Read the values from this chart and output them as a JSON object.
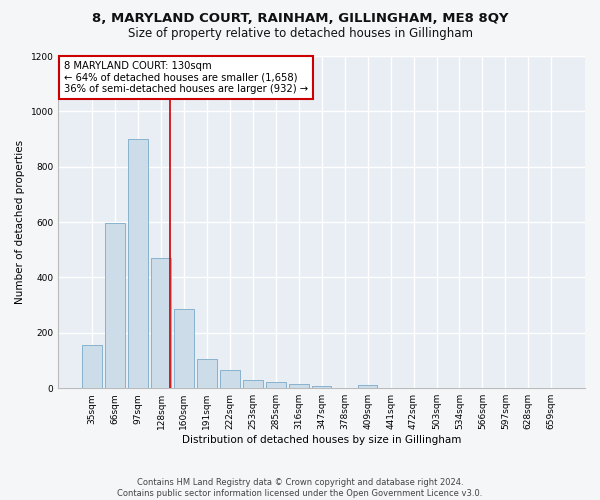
{
  "title": "8, MARYLAND COURT, RAINHAM, GILLINGHAM, ME8 8QY",
  "subtitle": "Size of property relative to detached houses in Gillingham",
  "xlabel": "Distribution of detached houses by size in Gillingham",
  "ylabel": "Number of detached properties",
  "bar_color": "#ccdce8",
  "bar_edge_color": "#7aaac8",
  "background_color": "#e8eef4",
  "grid_color": "#ffffff",
  "fig_background": "#f4f6f8",
  "categories": [
    "35sqm",
    "66sqm",
    "97sqm",
    "128sqm",
    "160sqm",
    "191sqm",
    "222sqm",
    "253sqm",
    "285sqm",
    "316sqm",
    "347sqm",
    "378sqm",
    "409sqm",
    "441sqm",
    "472sqm",
    "503sqm",
    "534sqm",
    "566sqm",
    "597sqm",
    "628sqm",
    "659sqm"
  ],
  "values": [
    155,
    595,
    900,
    470,
    285,
    105,
    65,
    30,
    22,
    14,
    9,
    0,
    10,
    0,
    0,
    0,
    0,
    0,
    0,
    0,
    0
  ],
  "ylim": [
    0,
    1200
  ],
  "yticks": [
    0,
    200,
    400,
    600,
    800,
    1000,
    1200
  ],
  "property_line_index": 3,
  "annotation_box_text": "8 MARYLAND COURT: 130sqm\n← 64% of detached houses are smaller (1,658)\n36% of semi-detached houses are larger (932) →",
  "annotation_box_color": "#ffffff",
  "annotation_box_edge_color": "#cc0000",
  "red_line_color": "#cc0000",
  "footer_text": "Contains HM Land Registry data © Crown copyright and database right 2024.\nContains public sector information licensed under the Open Government Licence v3.0."
}
